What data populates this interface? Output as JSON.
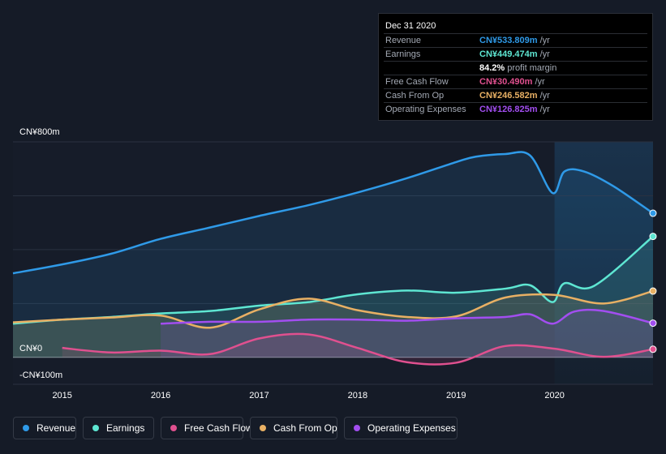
{
  "tooltip": {
    "date": "Dec 31 2020",
    "rows": [
      {
        "label": "Revenue",
        "value": "CN¥533.809m",
        "unit": "/yr",
        "color": "#2f9ae8"
      },
      {
        "label": "Earnings",
        "value": "CN¥449.474m",
        "unit": "/yr",
        "color": "#5ee6d2"
      },
      {
        "label": "",
        "value": "84.2%",
        "unit": "profit margin",
        "color": "#ffffff"
      },
      {
        "label": "Free Cash Flow",
        "value": "CN¥30.490m",
        "unit": "/yr",
        "color": "#e0508f"
      },
      {
        "label": "Cash From Op",
        "value": "CN¥246.582m",
        "unit": "/yr",
        "color": "#e8b064"
      },
      {
        "label": "Operating Expenses",
        "value": "CN¥126.825m",
        "unit": "/yr",
        "color": "#a24ef0"
      }
    ]
  },
  "chart_data": {
    "type": "area",
    "y_top_label": "CN¥800m",
    "y_zero_label": "CN¥0",
    "y_bottom_label": "-CN¥100m",
    "ylim": [
      -100,
      800
    ],
    "x_ticks": [
      "2015",
      "2016",
      "2017",
      "2018",
      "2019",
      "2020"
    ],
    "x_range": [
      2014.5,
      2021.0
    ],
    "grid": true,
    "legend_position": "bottom",
    "highlight_from": 2020.0,
    "series": [
      {
        "name": "Revenue",
        "color": "#2f9ae8",
        "points": [
          [
            2014.5,
            312
          ],
          [
            2015.0,
            345
          ],
          [
            2015.5,
            385
          ],
          [
            2016.0,
            440
          ],
          [
            2016.5,
            482
          ],
          [
            2017.0,
            525
          ],
          [
            2017.5,
            565
          ],
          [
            2018.0,
            612
          ],
          [
            2018.5,
            665
          ],
          [
            2019.0,
            725
          ],
          [
            2019.2,
            745
          ],
          [
            2019.5,
            755
          ],
          [
            2019.75,
            750
          ],
          [
            2019.98,
            610
          ],
          [
            2020.1,
            690
          ],
          [
            2020.3,
            690
          ],
          [
            2020.6,
            635
          ],
          [
            2021.0,
            535
          ]
        ]
      },
      {
        "name": "Earnings",
        "color": "#5ee6d2",
        "points": [
          [
            2014.5,
            125
          ],
          [
            2015.0,
            140
          ],
          [
            2015.5,
            150
          ],
          [
            2016.0,
            163
          ],
          [
            2016.5,
            172
          ],
          [
            2017.0,
            192
          ],
          [
            2017.5,
            205
          ],
          [
            2018.0,
            234
          ],
          [
            2018.5,
            248
          ],
          [
            2019.0,
            240
          ],
          [
            2019.5,
            255
          ],
          [
            2019.75,
            268
          ],
          [
            2019.98,
            205
          ],
          [
            2020.1,
            275
          ],
          [
            2020.4,
            265
          ],
          [
            2021.0,
            449
          ]
        ]
      },
      {
        "name": "Free Cash Flow",
        "color": "#e0508f",
        "points": [
          [
            2015.0,
            35
          ],
          [
            2015.5,
            18
          ],
          [
            2016.0,
            25
          ],
          [
            2016.5,
            12
          ],
          [
            2017.0,
            70
          ],
          [
            2017.5,
            85
          ],
          [
            2018.0,
            35
          ],
          [
            2018.5,
            -18
          ],
          [
            2019.0,
            -20
          ],
          [
            2019.5,
            42
          ],
          [
            2020.0,
            32
          ],
          [
            2020.5,
            2
          ],
          [
            2021.0,
            30
          ]
        ]
      },
      {
        "name": "Cash From Op",
        "color": "#e8b064",
        "points": [
          [
            2014.5,
            130
          ],
          [
            2015.0,
            140
          ],
          [
            2015.5,
            148
          ],
          [
            2016.0,
            155
          ],
          [
            2016.5,
            110
          ],
          [
            2017.0,
            178
          ],
          [
            2017.5,
            218
          ],
          [
            2018.0,
            175
          ],
          [
            2018.5,
            150
          ],
          [
            2019.0,
            152
          ],
          [
            2019.5,
            222
          ],
          [
            2020.0,
            232
          ],
          [
            2020.5,
            200
          ],
          [
            2021.0,
            246
          ]
        ]
      },
      {
        "name": "Operating Expenses",
        "color": "#a24ef0",
        "points": [
          [
            2016.0,
            125
          ],
          [
            2016.5,
            132
          ],
          [
            2017.0,
            132
          ],
          [
            2017.5,
            140
          ],
          [
            2018.0,
            140
          ],
          [
            2018.5,
            136
          ],
          [
            2019.0,
            145
          ],
          [
            2019.5,
            150
          ],
          [
            2019.75,
            160
          ],
          [
            2019.98,
            125
          ],
          [
            2020.2,
            170
          ],
          [
            2020.5,
            172
          ],
          [
            2021.0,
            127
          ]
        ]
      }
    ]
  },
  "legend": [
    {
      "label": "Revenue",
      "color": "#2f9ae8"
    },
    {
      "label": "Earnings",
      "color": "#5ee6d2"
    },
    {
      "label": "Free Cash Flow",
      "color": "#e0508f"
    },
    {
      "label": "Cash From Op",
      "color": "#e8b064"
    },
    {
      "label": "Operating Expenses",
      "color": "#a24ef0"
    }
  ]
}
